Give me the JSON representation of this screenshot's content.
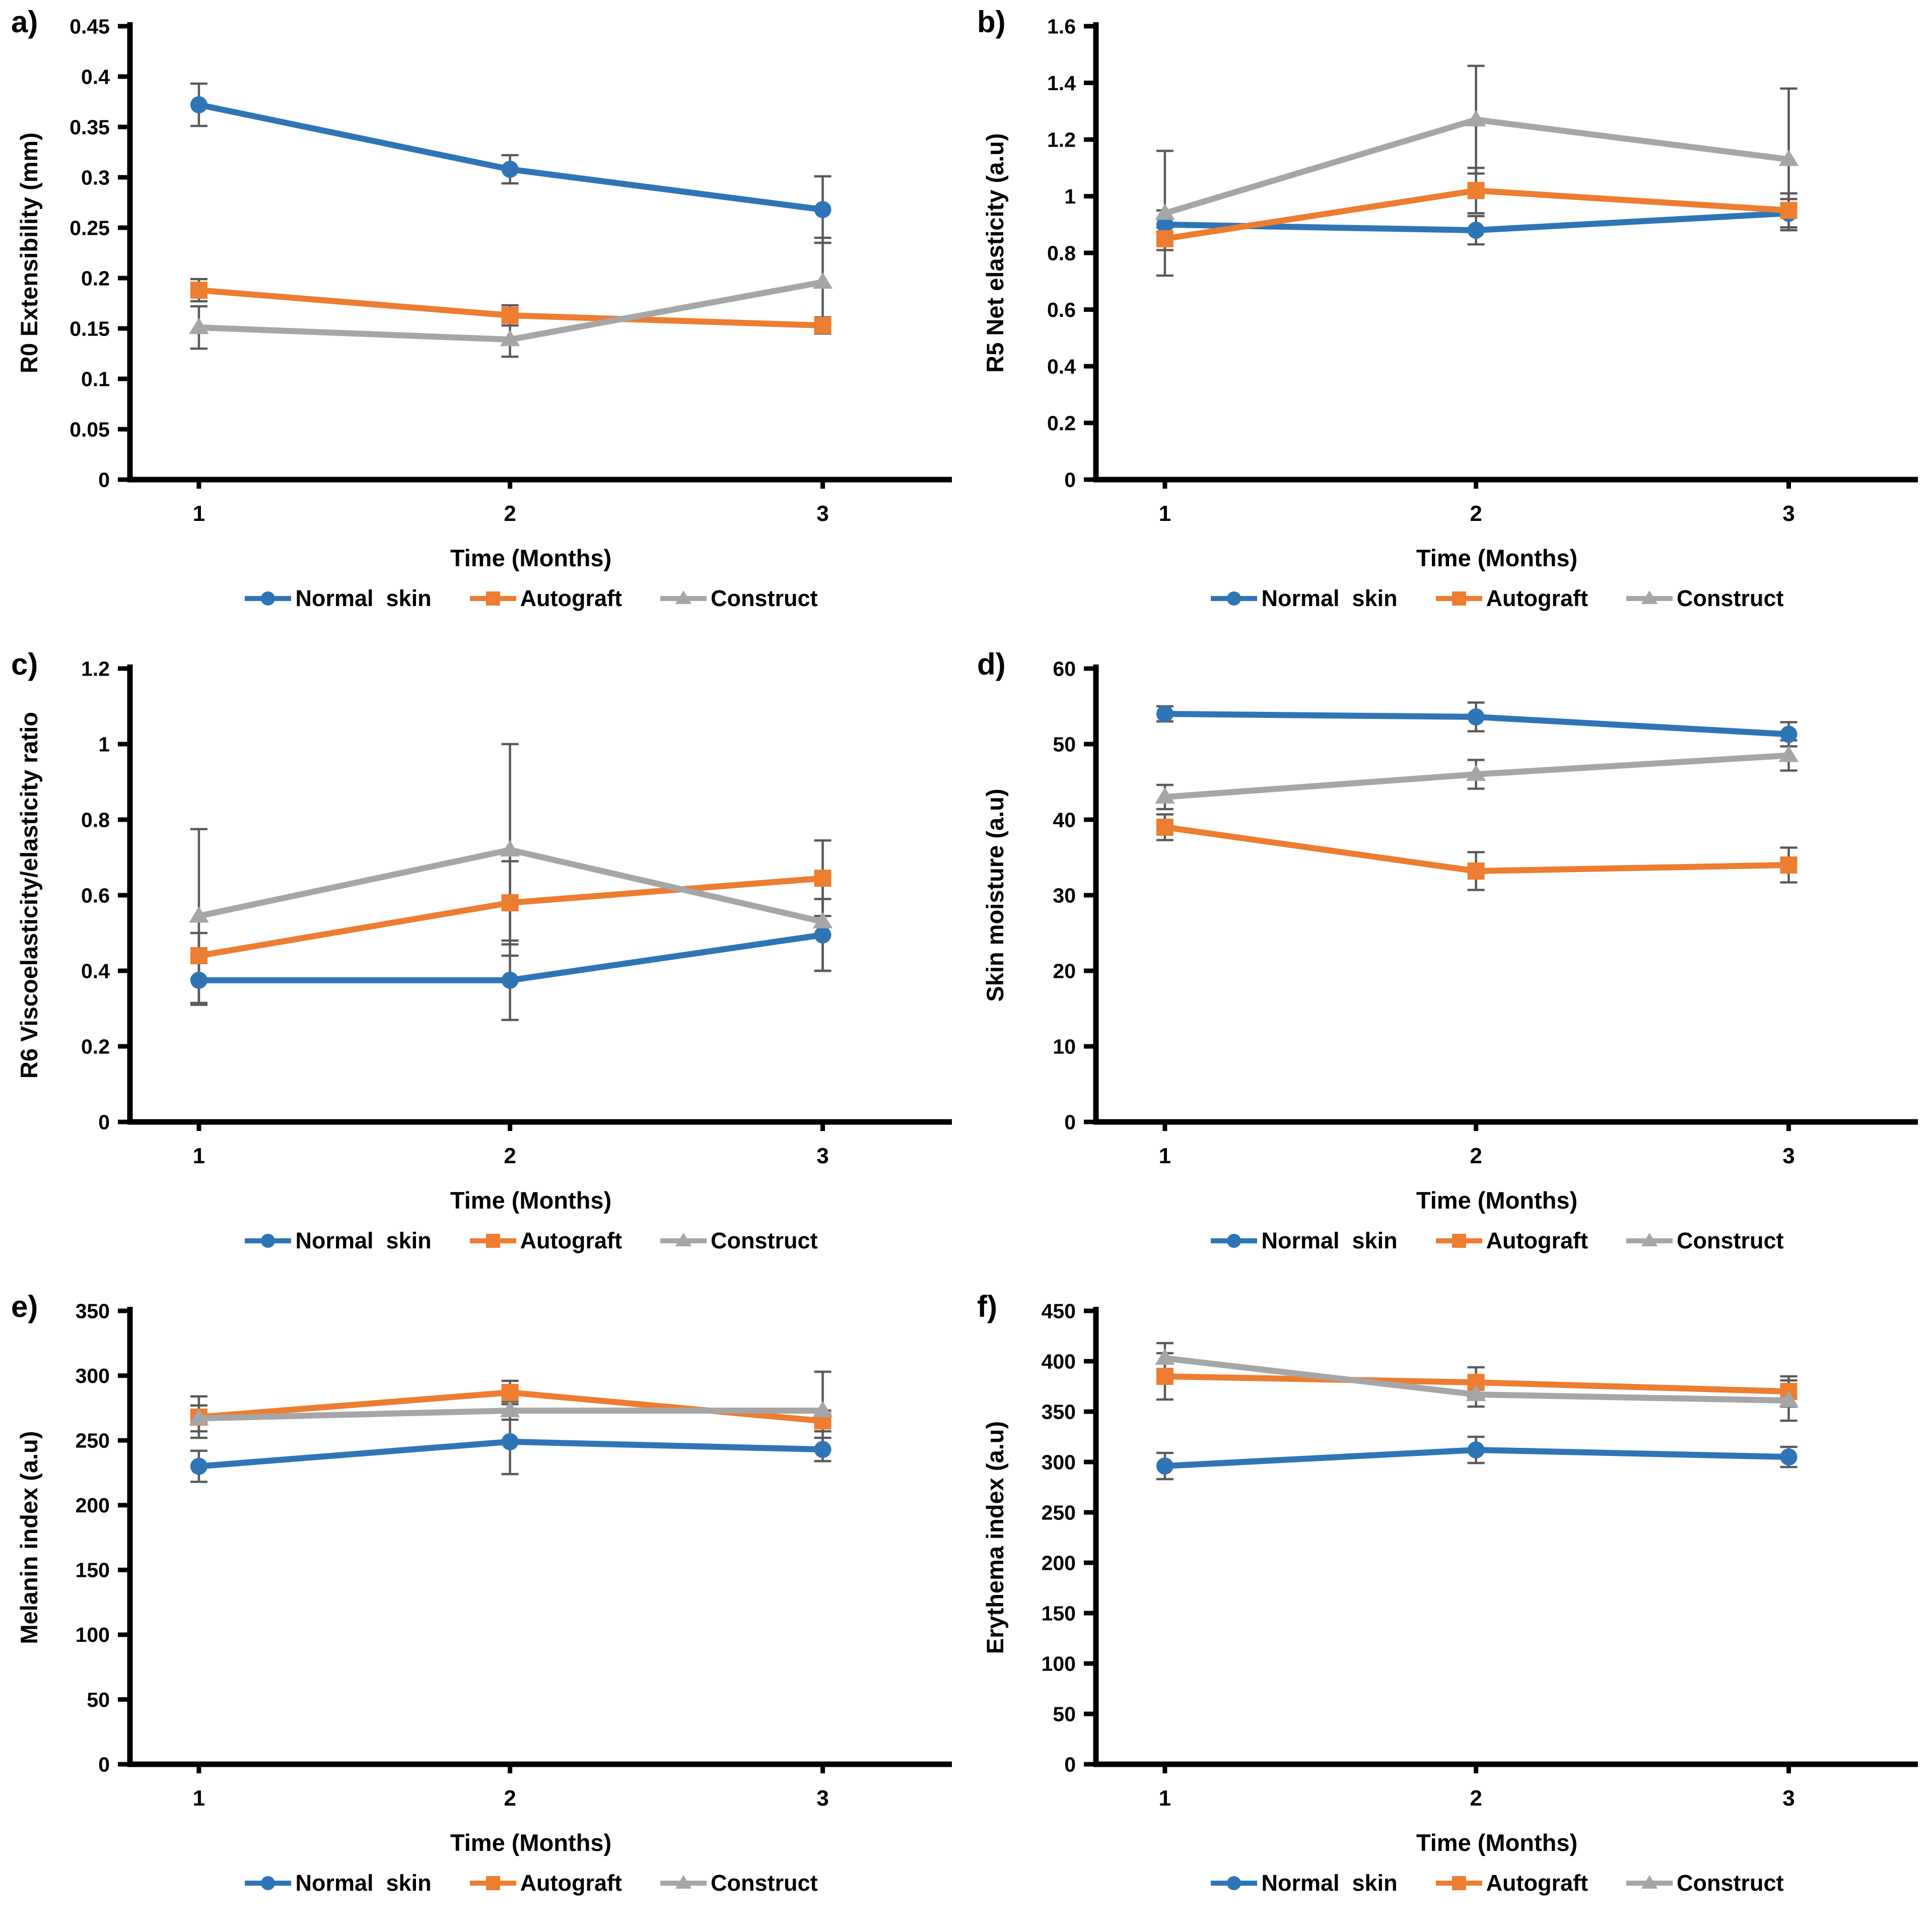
{
  "figure": {
    "x_label": "Time (Months)",
    "x_ticks": [
      "1",
      "2",
      "3"
    ],
    "error_bar_color": "#595959",
    "axis_color": "#000000",
    "series_meta": [
      {
        "name": "Normal  skin",
        "color": "#2E75B6",
        "marker": "circle"
      },
      {
        "name": "Autograft",
        "color": "#ED7D31",
        "marker": "square"
      },
      {
        "name": "Construct",
        "color": "#A6A6A6",
        "marker": "triangle"
      }
    ]
  },
  "chart_data": [
    {
      "panel": "a)",
      "type": "line",
      "ylabel": "R0 Extensibility  (mm)",
      "xlabel": "Time (Months)",
      "x": [
        1,
        2,
        3
      ],
      "ylim": [
        0,
        0.45
      ],
      "yticks": [
        "0",
        "0.05",
        "0.1",
        "0.15",
        "0.2",
        "0.25",
        "0.3",
        "0.35",
        "0.4",
        "0.45"
      ],
      "legend_position": "bottom",
      "grid": false,
      "series": [
        {
          "name": "Normal  skin",
          "values": [
            0.372,
            0.308,
            0.268
          ],
          "errors": [
            0.021,
            0.014,
            0.033
          ]
        },
        {
          "name": "Autograft",
          "values": [
            0.188,
            0.163,
            0.153
          ],
          "errors": [
            0.011,
            0.01,
            0.008
          ]
        },
        {
          "name": "Construct",
          "values": [
            0.151,
            0.139,
            0.196
          ],
          "errors": [
            0.021,
            0.017,
            0.044
          ]
        }
      ]
    },
    {
      "panel": "b)",
      "type": "line",
      "ylabel": "R5 Net elasticity (a.u)",
      "xlabel": "Time (Months)",
      "x": [
        1,
        2,
        3
      ],
      "ylim": [
        0,
        1.6
      ],
      "yticks": [
        "0",
        "0.2",
        "0.4",
        "0.6",
        "0.8",
        "1",
        "1.2",
        "1.4",
        "1.6"
      ],
      "legend_position": "bottom",
      "grid": false,
      "series": [
        {
          "name": "Normal  skin",
          "values": [
            0.9,
            0.88,
            0.94
          ],
          "errors": [
            0.05,
            0.05,
            0.05
          ]
        },
        {
          "name": "Autograft",
          "values": [
            0.85,
            1.02,
            0.95
          ],
          "errors": [
            0.04,
            0.08,
            0.06
          ]
        },
        {
          "name": "Construct",
          "values": [
            0.94,
            1.27,
            1.13
          ],
          "errors": [
            0.22,
            0.19,
            0.25
          ]
        }
      ]
    },
    {
      "panel": "c)",
      "type": "line",
      "ylabel": "R6 Viscoelasticity/elasticity ratio",
      "xlabel": "Time (Months)",
      "x": [
        1,
        2,
        3
      ],
      "ylim": [
        0,
        1.2
      ],
      "yticks": [
        "0",
        "0.2",
        "0.4",
        "0.6",
        "0.8",
        "1",
        "1.2"
      ],
      "legend_position": "bottom",
      "grid": false,
      "series": [
        {
          "name": "Normal  skin",
          "values": [
            0.375,
            0.375,
            0.495
          ],
          "errors": [
            0.065,
            0.105,
            0.095
          ]
        },
        {
          "name": "Autograft",
          "values": [
            0.44,
            0.58,
            0.645
          ],
          "errors": [
            0.06,
            0.11,
            0.1
          ]
        },
        {
          "name": "Construct",
          "values": [
            0.545,
            0.72,
            0.53
          ],
          "errors": [
            0.23,
            0.28,
            0.13
          ]
        }
      ]
    },
    {
      "panel": "d)",
      "type": "line",
      "ylabel": "Skin moisture (a.u)",
      "xlabel": "Time (Months)",
      "x": [
        1,
        2,
        3
      ],
      "ylim": [
        0,
        60
      ],
      "yticks": [
        "0",
        "10",
        "20",
        "30",
        "40",
        "50",
        "60"
      ],
      "legend_position": "bottom",
      "grid": false,
      "series": [
        {
          "name": "Normal  skin",
          "values": [
            54,
            53.6,
            51.3
          ],
          "errors": [
            1.0,
            1.9,
            1.6
          ]
        },
        {
          "name": "Autograft",
          "values": [
            39,
            33.2,
            34.0
          ],
          "errors": [
            1.7,
            2.5,
            2.3
          ]
        },
        {
          "name": "Construct",
          "values": [
            43,
            46,
            48.5
          ],
          "errors": [
            1.6,
            1.9,
            2.0
          ]
        }
      ]
    },
    {
      "panel": "e)",
      "type": "line",
      "ylabel": "Melanin index (a.u)",
      "xlabel": "Time (Months)",
      "x": [
        1,
        2,
        3
      ],
      "ylim": [
        0,
        350
      ],
      "yticks": [
        "0",
        "50",
        "100",
        "150",
        "200",
        "250",
        "300",
        "350"
      ],
      "legend_position": "bottom",
      "grid": false,
      "series": [
        {
          "name": "Normal  skin",
          "values": [
            230,
            249,
            243
          ],
          "errors": [
            12,
            25,
            9
          ]
        },
        {
          "name": "Autograft",
          "values": [
            268,
            287,
            265
          ],
          "errors": [
            16,
            9,
            8
          ]
        },
        {
          "name": "Construct",
          "values": [
            267,
            273,
            273
          ],
          "errors": [
            10,
            7,
            30
          ]
        }
      ]
    },
    {
      "panel": "f)",
      "type": "line",
      "ylabel": "Erythema index (a.u)",
      "xlabel": "Time (Months)",
      "x": [
        1,
        2,
        3
      ],
      "ylim": [
        0,
        450
      ],
      "yticks": [
        "0",
        "50",
        "100",
        "150",
        "200",
        "250",
        "300",
        "350",
        "400",
        "450"
      ],
      "legend_position": "bottom",
      "grid": false,
      "series": [
        {
          "name": "Normal  skin",
          "values": [
            296,
            312,
            305
          ],
          "errors": [
            13,
            13,
            10
          ]
        },
        {
          "name": "Autograft",
          "values": [
            385,
            379,
            370
          ],
          "errors": [
            23,
            15,
            15
          ]
        },
        {
          "name": "Construct",
          "values": [
            403,
            367,
            361
          ],
          "errors": [
            15,
            12,
            20
          ]
        }
      ]
    }
  ]
}
